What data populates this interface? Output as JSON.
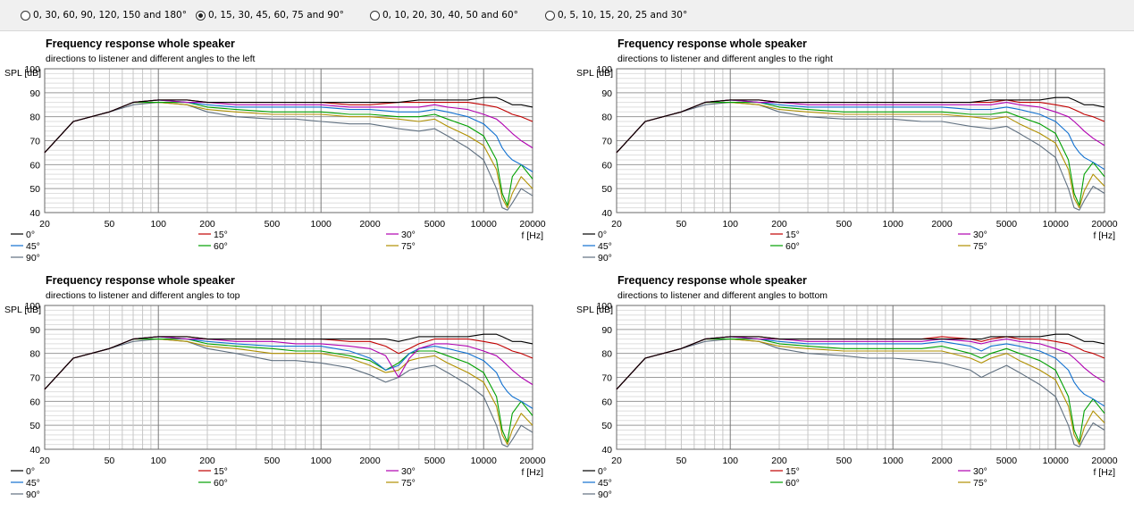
{
  "radio_options": [
    {
      "label": "0, 30, 60, 90, 120, 150 and 180°",
      "selected": false
    },
    {
      "label": "0, 15, 30, 45, 60, 75 and 90°",
      "selected": true
    },
    {
      "label": "0, 10, 20, 30, 40, 50 and 60°",
      "selected": false
    },
    {
      "label": "0, 5, 10, 15, 20, 25 and 30°",
      "selected": false
    }
  ],
  "series_colors": {
    "0°": "#000000",
    "15°": "#c00000",
    "30°": "#b000b0",
    "45°": "#1070d0",
    "60°": "#00a000",
    "75°": "#b09000",
    "90°": "#607080"
  },
  "chart_data": [
    {
      "type": "line",
      "title": "Frequency response whole speaker",
      "subtitle": "directions to listener and different angles to the left",
      "ylabel": "SPL [dB]",
      "xlabel": "f [Hz]",
      "xscale": "log",
      "xlim": [
        20,
        20000
      ],
      "ylim": [
        40,
        100
      ],
      "xticks": [
        20,
        50,
        100,
        200,
        500,
        1000,
        2000,
        5000,
        10000,
        20000
      ],
      "yticks": [
        40,
        50,
        60,
        70,
        80,
        90,
        100
      ],
      "grid": true,
      "x": [
        20,
        30,
        50,
        70,
        100,
        150,
        200,
        300,
        500,
        700,
        1000,
        1500,
        2000,
        3000,
        4000,
        5000,
        6000,
        8000,
        10000,
        12000,
        13000,
        14000,
        15000,
        17000,
        20000
      ],
      "series": [
        {
          "name": "0°",
          "values": [
            65,
            78,
            82,
            86,
            87,
            87,
            86,
            86,
            86,
            86,
            86,
            86,
            86,
            86,
            87,
            87,
            87,
            87,
            88,
            88,
            87,
            86,
            85,
            85,
            84
          ]
        },
        {
          "name": "15°",
          "values": [
            65,
            78,
            82,
            86,
            87,
            87,
            86,
            86,
            86,
            86,
            86,
            85,
            85,
            86,
            86,
            86,
            86,
            86,
            85,
            84,
            83,
            82,
            81,
            80,
            78
          ]
        },
        {
          "name": "30°",
          "values": [
            65,
            78,
            82,
            86,
            87,
            86,
            86,
            85,
            85,
            85,
            85,
            84,
            84,
            84,
            84,
            85,
            84,
            83,
            81,
            79,
            77,
            75,
            73,
            70,
            67
          ]
        },
        {
          "name": "45°",
          "values": [
            65,
            78,
            82,
            86,
            87,
            86,
            85,
            84,
            84,
            84,
            84,
            83,
            83,
            82,
            82,
            83,
            82,
            80,
            77,
            72,
            67,
            64,
            62,
            60,
            57
          ]
        },
        {
          "name": "60°",
          "values": [
            65,
            78,
            82,
            86,
            86,
            86,
            84,
            83,
            82,
            82,
            82,
            81,
            81,
            80,
            80,
            81,
            79,
            76,
            72,
            62,
            48,
            43,
            55,
            60,
            54
          ]
        },
        {
          "name": "75°",
          "values": [
            65,
            78,
            82,
            86,
            86,
            85,
            83,
            82,
            81,
            81,
            81,
            80,
            80,
            79,
            78,
            79,
            76,
            72,
            68,
            58,
            46,
            42,
            48,
            55,
            50
          ]
        },
        {
          "name": "90°",
          "values": [
            65,
            78,
            82,
            85,
            86,
            85,
            82,
            80,
            79,
            79,
            78,
            77,
            77,
            75,
            74,
            75,
            72,
            67,
            62,
            50,
            42,
            41,
            44,
            50,
            47
          ]
        }
      ],
      "legend_position": "bottom"
    },
    {
      "type": "line",
      "title": "Frequency response whole speaker",
      "subtitle": "directions to listener and different angles to the right",
      "ylabel": "SPL [dB]",
      "xlabel": "f [Hz]",
      "xscale": "log",
      "xlim": [
        20,
        20000
      ],
      "ylim": [
        40,
        100
      ],
      "xticks": [
        20,
        50,
        100,
        200,
        500,
        1000,
        2000,
        5000,
        10000,
        20000
      ],
      "yticks": [
        40,
        50,
        60,
        70,
        80,
        90,
        100
      ],
      "grid": true,
      "x": [
        20,
        30,
        50,
        70,
        100,
        150,
        200,
        300,
        500,
        700,
        1000,
        1500,
        2000,
        3000,
        4000,
        5000,
        6000,
        8000,
        10000,
        12000,
        13000,
        14000,
        15000,
        17000,
        20000
      ],
      "series": [
        {
          "name": "0°",
          "values": [
            65,
            78,
            82,
            86,
            87,
            87,
            86,
            86,
            86,
            86,
            86,
            86,
            86,
            86,
            87,
            87,
            87,
            87,
            88,
            88,
            87,
            86,
            85,
            85,
            84
          ]
        },
        {
          "name": "15°",
          "values": [
            65,
            78,
            82,
            86,
            87,
            87,
            86,
            86,
            86,
            86,
            86,
            86,
            86,
            86,
            86,
            87,
            86,
            86,
            85,
            84,
            83,
            82,
            81,
            80,
            78
          ]
        },
        {
          "name": "30°",
          "values": [
            65,
            78,
            82,
            86,
            87,
            86,
            86,
            85,
            85,
            85,
            85,
            85,
            85,
            85,
            85,
            86,
            85,
            84,
            82,
            80,
            78,
            76,
            74,
            71,
            68
          ]
        },
        {
          "name": "45°",
          "values": [
            65,
            78,
            82,
            86,
            87,
            86,
            85,
            84,
            84,
            84,
            84,
            84,
            84,
            83,
            83,
            84,
            83,
            81,
            78,
            73,
            68,
            65,
            63,
            61,
            58
          ]
        },
        {
          "name": "60°",
          "values": [
            65,
            78,
            82,
            86,
            86,
            86,
            84,
            83,
            82,
            82,
            82,
            82,
            82,
            81,
            81,
            82,
            80,
            77,
            73,
            62,
            48,
            43,
            56,
            61,
            55
          ]
        },
        {
          "name": "75°",
          "values": [
            65,
            78,
            82,
            86,
            86,
            85,
            83,
            82,
            81,
            81,
            81,
            81,
            81,
            80,
            79,
            80,
            77,
            73,
            69,
            58,
            46,
            42,
            49,
            56,
            51
          ]
        },
        {
          "name": "90°",
          "values": [
            65,
            78,
            82,
            85,
            86,
            85,
            82,
            80,
            79,
            79,
            79,
            78,
            78,
            76,
            75,
            76,
            73,
            68,
            63,
            50,
            42,
            41,
            45,
            51,
            48
          ]
        }
      ],
      "legend_position": "bottom"
    },
    {
      "type": "line",
      "title": "Frequency response whole speaker",
      "subtitle": "directions to listener and different angles to top",
      "ylabel": "SPL [dB]",
      "xlabel": "f [Hz]",
      "xscale": "log",
      "xlim": [
        20,
        20000
      ],
      "ylim": [
        40,
        100
      ],
      "xticks": [
        20,
        50,
        100,
        200,
        500,
        1000,
        2000,
        5000,
        10000,
        20000
      ],
      "yticks": [
        40,
        50,
        60,
        70,
        80,
        90,
        100
      ],
      "grid": true,
      "x": [
        20,
        30,
        50,
        70,
        100,
        150,
        200,
        300,
        500,
        700,
        1000,
        1500,
        2000,
        2500,
        3000,
        3500,
        4000,
        5000,
        6000,
        8000,
        10000,
        12000,
        13000,
        14000,
        15000,
        17000,
        20000
      ],
      "series": [
        {
          "name": "0°",
          "values": [
            65,
            78,
            82,
            86,
            87,
            87,
            86,
            86,
            86,
            86,
            86,
            86,
            86,
            86,
            85,
            86,
            87,
            87,
            87,
            87,
            88,
            88,
            87,
            86,
            85,
            85,
            84
          ]
        },
        {
          "name": "15°",
          "values": [
            65,
            78,
            82,
            86,
            87,
            87,
            86,
            86,
            86,
            86,
            86,
            85,
            85,
            83,
            80,
            82,
            84,
            86,
            86,
            86,
            85,
            84,
            83,
            82,
            81,
            80,
            78
          ]
        },
        {
          "name": "30°",
          "values": [
            65,
            78,
            82,
            86,
            87,
            86,
            86,
            85,
            85,
            84,
            84,
            83,
            82,
            79,
            70,
            78,
            82,
            84,
            84,
            83,
            81,
            79,
            77,
            75,
            73,
            70,
            67
          ]
        },
        {
          "name": "45°",
          "values": [
            65,
            78,
            82,
            86,
            87,
            86,
            85,
            84,
            83,
            83,
            83,
            81,
            78,
            73,
            75,
            80,
            82,
            83,
            82,
            80,
            77,
            72,
            67,
            64,
            62,
            60,
            57
          ]
        },
        {
          "name": "60°",
          "values": [
            65,
            78,
            82,
            86,
            86,
            86,
            84,
            83,
            82,
            81,
            81,
            79,
            77,
            73,
            76,
            80,
            81,
            81,
            79,
            76,
            72,
            62,
            48,
            43,
            55,
            60,
            54
          ]
        },
        {
          "name": "75°",
          "values": [
            65,
            78,
            82,
            86,
            86,
            85,
            83,
            82,
            80,
            80,
            80,
            78,
            75,
            72,
            73,
            77,
            78,
            79,
            76,
            72,
            68,
            58,
            46,
            42,
            48,
            55,
            50
          ]
        },
        {
          "name": "90°",
          "values": [
            65,
            78,
            82,
            85,
            86,
            85,
            82,
            80,
            77,
            77,
            76,
            74,
            71,
            68,
            70,
            73,
            74,
            75,
            72,
            67,
            62,
            50,
            42,
            41,
            44,
            50,
            47
          ]
        }
      ],
      "legend_position": "bottom"
    },
    {
      "type": "line",
      "title": "Frequency response whole speaker",
      "subtitle": "directions to listener and different angles to bottom",
      "ylabel": "SPL [dB]",
      "xlabel": "f [Hz]",
      "xscale": "log",
      "xlim": [
        20,
        20000
      ],
      "ylim": [
        40,
        100
      ],
      "xticks": [
        20,
        50,
        100,
        200,
        500,
        1000,
        2000,
        5000,
        10000,
        20000
      ],
      "yticks": [
        40,
        50,
        60,
        70,
        80,
        90,
        100
      ],
      "grid": true,
      "x": [
        20,
        30,
        50,
        70,
        100,
        150,
        200,
        300,
        500,
        700,
        1000,
        1500,
        2000,
        3000,
        3500,
        4000,
        5000,
        6000,
        8000,
        10000,
        12000,
        13000,
        14000,
        15000,
        17000,
        20000
      ],
      "series": [
        {
          "name": "0°",
          "values": [
            65,
            78,
            82,
            86,
            87,
            87,
            86,
            86,
            86,
            86,
            86,
            86,
            86,
            86,
            86,
            87,
            87,
            87,
            87,
            88,
            88,
            87,
            86,
            85,
            85,
            84
          ]
        },
        {
          "name": "15°",
          "values": [
            65,
            78,
            82,
            86,
            87,
            87,
            86,
            86,
            86,
            86,
            86,
            86,
            87,
            86,
            85,
            86,
            87,
            86,
            86,
            85,
            84,
            83,
            82,
            81,
            80,
            78
          ]
        },
        {
          "name": "30°",
          "values": [
            65,
            78,
            82,
            86,
            87,
            86,
            86,
            85,
            85,
            85,
            85,
            85,
            86,
            85,
            84,
            85,
            86,
            85,
            84,
            82,
            80,
            78,
            76,
            74,
            71,
            68
          ]
        },
        {
          "name": "45°",
          "values": [
            65,
            78,
            82,
            86,
            87,
            86,
            85,
            84,
            84,
            84,
            84,
            84,
            85,
            83,
            81,
            83,
            84,
            83,
            81,
            78,
            73,
            68,
            65,
            63,
            61,
            58
          ]
        },
        {
          "name": "60°",
          "values": [
            65,
            78,
            82,
            86,
            86,
            86,
            84,
            83,
            82,
            82,
            82,
            82,
            83,
            80,
            78,
            80,
            82,
            80,
            77,
            73,
            62,
            48,
            43,
            56,
            61,
            55
          ]
        },
        {
          "name": "75°",
          "values": [
            65,
            78,
            82,
            86,
            86,
            85,
            83,
            82,
            81,
            81,
            81,
            81,
            81,
            78,
            76,
            78,
            80,
            77,
            73,
            69,
            58,
            46,
            42,
            49,
            56,
            51
          ]
        },
        {
          "name": "90°",
          "values": [
            65,
            78,
            82,
            85,
            86,
            85,
            82,
            80,
            79,
            78,
            78,
            77,
            76,
            73,
            70,
            72,
            75,
            72,
            67,
            62,
            50,
            42,
            41,
            45,
            51,
            48
          ]
        }
      ],
      "legend_position": "bottom"
    }
  ]
}
